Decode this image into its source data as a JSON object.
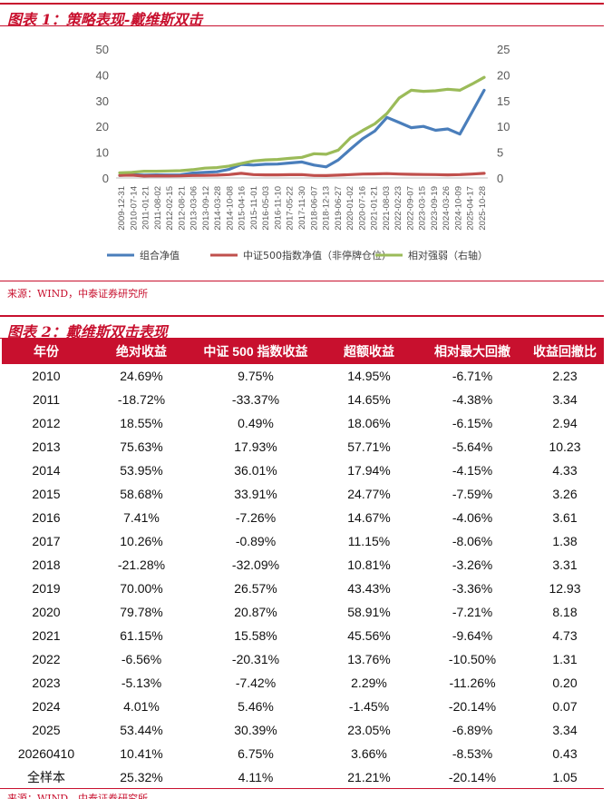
{
  "figure1": {
    "title": "图表 1：策略表现-戴维斯双击",
    "source": "来源：WIND，中泰证券研究所"
  },
  "chart_data": {
    "type": "line",
    "left_axis": {
      "min": 0,
      "max": 50,
      "ticks": [
        0,
        10,
        20,
        30,
        40,
        50
      ]
    },
    "right_axis": {
      "min": 0,
      "max": 25,
      "ticks": [
        0,
        5,
        10,
        15,
        20,
        25
      ]
    },
    "x_labels": [
      "2009-12-31",
      "2010-07-14",
      "2011-01-21",
      "2011-08-02",
      "2012-02-15",
      "2012-08-21",
      "2013-03-06",
      "2013-09-12",
      "2014-03-28",
      "2014-10-08",
      "2015-04-16",
      "2015-11-01",
      "2016-05-03",
      "2016-11-10",
      "2017-05-22",
      "2017-11-30",
      "2018-06-07",
      "2018-12-13",
      "2019-06-27",
      "2020-01-02",
      "2020-07-16",
      "2021-01-21",
      "2021-08-03",
      "2022-02-23",
      "2022-09-07",
      "2023-03-15",
      "2023-09-19",
      "2024-03-26",
      "2024-10-09",
      "2025-04-17",
      "2025-10-28"
    ],
    "series": [
      {
        "name": "组合净值",
        "axis": "left",
        "color": "#4a7ebb",
        "values": [
          1.0,
          1.25,
          1.1,
          1.2,
          1.15,
          1.2,
          1.9,
          2.2,
          2.4,
          3.3,
          5.2,
          5.0,
          5.3,
          5.4,
          5.8,
          6.2,
          5.0,
          4.3,
          7.0,
          11.2,
          15.2,
          18.2,
          23.5,
          21.5,
          19.5,
          20.0,
          18.5,
          19.0,
          17.0,
          25.5,
          34.0
        ]
      },
      {
        "name": "中证500指数净值（非停牌仓位）",
        "axis": "left",
        "color": "#c0504d",
        "values": [
          1.0,
          1.1,
          0.75,
          0.8,
          0.78,
          0.8,
          0.95,
          1.0,
          1.1,
          1.3,
          1.8,
          1.3,
          1.2,
          1.2,
          1.25,
          1.3,
          0.95,
          0.9,
          1.1,
          1.3,
          1.5,
          1.6,
          1.7,
          1.5,
          1.4,
          1.35,
          1.3,
          1.2,
          1.3,
          1.5,
          1.8
        ]
      },
      {
        "name": "相对强弱（右轴）",
        "axis": "right",
        "color": "#9bbb59",
        "values": [
          1.0,
          1.1,
          1.3,
          1.3,
          1.35,
          1.4,
          1.6,
          1.9,
          2.0,
          2.3,
          2.8,
          3.3,
          3.5,
          3.6,
          3.8,
          4.0,
          4.7,
          4.6,
          5.4,
          7.8,
          9.2,
          10.5,
          12.5,
          15.5,
          17.0,
          16.8,
          16.9,
          17.2,
          17.0,
          18.2,
          19.5
        ]
      }
    ]
  },
  "figure2": {
    "title": "图表 2：戴维斯双击表现",
    "source": "来源：WIND，中泰证券研究所"
  },
  "table": {
    "headers": [
      "年份",
      "绝对收益",
      "中证 500 指数收益",
      "超额收益",
      "相对最大回撤",
      "收益回撤比"
    ],
    "rows": [
      [
        "2010",
        "24.69%",
        "9.75%",
        "14.95%",
        "-6.71%",
        "2.23"
      ],
      [
        "2011",
        "-18.72%",
        "-33.37%",
        "14.65%",
        "-4.38%",
        "3.34"
      ],
      [
        "2012",
        "18.55%",
        "0.49%",
        "18.06%",
        "-6.15%",
        "2.94"
      ],
      [
        "2013",
        "75.63%",
        "17.93%",
        "57.71%",
        "-5.64%",
        "10.23"
      ],
      [
        "2014",
        "53.95%",
        "36.01%",
        "17.94%",
        "-4.15%",
        "4.33"
      ],
      [
        "2015",
        "58.68%",
        "33.91%",
        "24.77%",
        "-7.59%",
        "3.26"
      ],
      [
        "2016",
        "7.41%",
        "-7.26%",
        "14.67%",
        "-4.06%",
        "3.61"
      ],
      [
        "2017",
        "10.26%",
        "-0.89%",
        "11.15%",
        "-8.06%",
        "1.38"
      ],
      [
        "2018",
        "-21.28%",
        "-32.09%",
        "10.81%",
        "-3.26%",
        "3.31"
      ],
      [
        "2019",
        "70.00%",
        "26.57%",
        "43.43%",
        "-3.36%",
        "12.93"
      ],
      [
        "2020",
        "79.78%",
        "20.87%",
        "58.91%",
        "-7.21%",
        "8.18"
      ],
      [
        "2021",
        "61.15%",
        "15.58%",
        "45.56%",
        "-9.64%",
        "4.73"
      ],
      [
        "2022",
        "-6.56%",
        "-20.31%",
        "13.76%",
        "-10.50%",
        "1.31"
      ],
      [
        "2023",
        "-5.13%",
        "-7.42%",
        "2.29%",
        "-11.26%",
        "0.20"
      ],
      [
        "2024",
        "4.01%",
        "5.46%",
        "-1.45%",
        "-20.14%",
        "0.07"
      ],
      [
        "2025",
        "53.44%",
        "30.39%",
        "23.05%",
        "-6.89%",
        "3.34"
      ],
      [
        "20260410",
        "10.41%",
        "6.75%",
        "3.66%",
        "-8.53%",
        "0.43"
      ],
      [
        "全样本",
        "25.32%",
        "4.11%",
        "21.21%",
        "-20.14%",
        "1.05"
      ]
    ]
  }
}
